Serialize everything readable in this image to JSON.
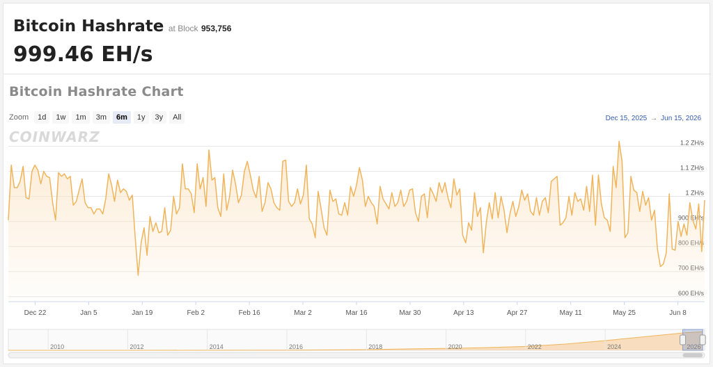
{
  "header": {
    "title": "Bitcoin Hashrate",
    "at_block_label": "at Block",
    "block_number": "953,756",
    "current_hashrate": "999.46 EH/s"
  },
  "chart_section": {
    "title": "Bitcoin Hashrate Chart",
    "zoom_label": "Zoom",
    "zoom_options": [
      "1d",
      "1w",
      "1m",
      "3m",
      "6m",
      "1y",
      "3y",
      "All"
    ],
    "zoom_selected": "6m",
    "range_from": "Dec 15, 2025",
    "range_arrow": "→",
    "range_to": "Jun 15, 2026",
    "watermark": "COINWARZ"
  },
  "colors": {
    "line": "#f0b45a",
    "area_top": "#fbe4c5",
    "navigator_fill": "#f6d2a4",
    "accent": "#335cad"
  },
  "chart_data": {
    "type": "line",
    "series": [
      {
        "values": [
          905,
          1125,
          1035,
          1035,
          1060,
          1120,
          995,
          990,
          1100,
          1125,
          1105,
          1050,
          1100,
          1080,
          1075,
          975,
          905,
          1095,
          1080,
          1090,
          1070,
          1080,
          965,
          980,
          1025,
          1070,
          975,
          955,
          955,
          930,
          950,
          950,
          930,
          990,
          1090,
          1045,
          980,
          1065,
          1015,
          1030,
          1020,
          985,
          1005,
          835,
          685,
          815,
          875,
          765,
          920,
          860,
          895,
          855,
          860,
          955,
          845,
          865,
          1000,
          930,
          955,
          1130,
          1030,
          1030,
          1010,
          935,
          1130,
          1030,
          1075,
          960,
          1185,
          1065,
          1075,
          955,
          920,
          1090,
          945,
          1000,
          1105,
          1050,
          975,
          1005,
          1100,
          1140,
          1085,
          1025,
          995,
          1080,
          940,
          975,
          1055,
          1030,
          975,
          955,
          945,
          1140,
          1145,
          980,
          960,
          975,
          1030,
          970,
          1005,
          1125,
          910,
          890,
          835,
          1020,
          950,
          875,
          845,
          1025,
          980,
          990,
          930,
          925,
          975,
          925,
          1040,
          1000,
          1045,
          1115,
          1065,
          960,
          1000,
          975,
          960,
          890,
          1040,
          990,
          970,
          950,
          1015,
          960,
          975,
          1025,
          960,
          980,
          1025,
          1030,
          935,
          900,
          1000,
          1010,
          915,
          1035,
          1010,
          980,
          1055,
          1015,
          1055,
          995,
          955,
          1070,
          1005,
          1030,
          845,
          815,
          895,
          865,
          1015,
          920,
          955,
          775,
          895,
          975,
          910,
          1015,
          915,
          1000,
          945,
          855,
          930,
          980,
          920,
          960,
          1025,
          985,
          1010,
          940,
          925,
          995,
          925,
          980,
          995,
          935,
          1060,
          1070,
          1080,
          885,
          895,
          915,
          1000,
          925,
          1015,
          980,
          990,
          945,
          1040,
          940,
          1085,
          885,
          1085,
          970,
          915,
          905,
          860,
          1120,
          1035,
          1220,
          1140,
          835,
          855,
          1080,
          1025,
          1015,
          940,
          1020,
          965,
          995,
          905,
          945,
          790,
          720,
          730,
          775,
          1010,
          790,
          785,
          900,
          840,
          890,
          845,
          975,
          905,
          870,
          970,
          780,
          985
        ]
      }
    ],
    "x_start": "Dec 15, 2025",
    "x_end": "Jun 15, 2026",
    "x_ticks": [
      "Dec 22",
      "Jan 5",
      "Jan 19",
      "Feb 2",
      "Feb 16",
      "Mar 2",
      "Mar 16",
      "Mar 30",
      "Apr 13",
      "Apr 27",
      "May 11",
      "May 25",
      "Jun 8"
    ],
    "y_ticks": [
      "600 EH/s",
      "700 EH/s",
      "800 EH/s",
      "900 EH/s",
      "1 ZH/s",
      "1.1 ZH/s",
      "1.2 ZH/s"
    ],
    "y_tick_values": [
      600,
      700,
      800,
      900,
      1000,
      1100,
      1200
    ],
    "ylim": [
      580,
      1240
    ],
    "ylabel": "",
    "xlabel": "",
    "grid": true,
    "navigator": {
      "x_ticks": [
        "2010",
        "2012",
        "2014",
        "2016",
        "2018",
        "2020",
        "2022",
        "2024",
        "2026"
      ],
      "x_range": [
        2009,
        2026.5
      ],
      "profile_years": [
        2009,
        2012,
        2014,
        2016,
        2018,
        2019,
        2020,
        2021,
        2022,
        2023,
        2024,
        2025,
        2026,
        2026.45
      ],
      "profile_values": [
        0,
        0.001,
        0.003,
        0.01,
        0.035,
        0.07,
        0.1,
        0.14,
        0.2,
        0.32,
        0.5,
        0.7,
        0.9,
        0.95
      ],
      "selected_from": 2025.95,
      "selected_to": 2026.45
    }
  }
}
